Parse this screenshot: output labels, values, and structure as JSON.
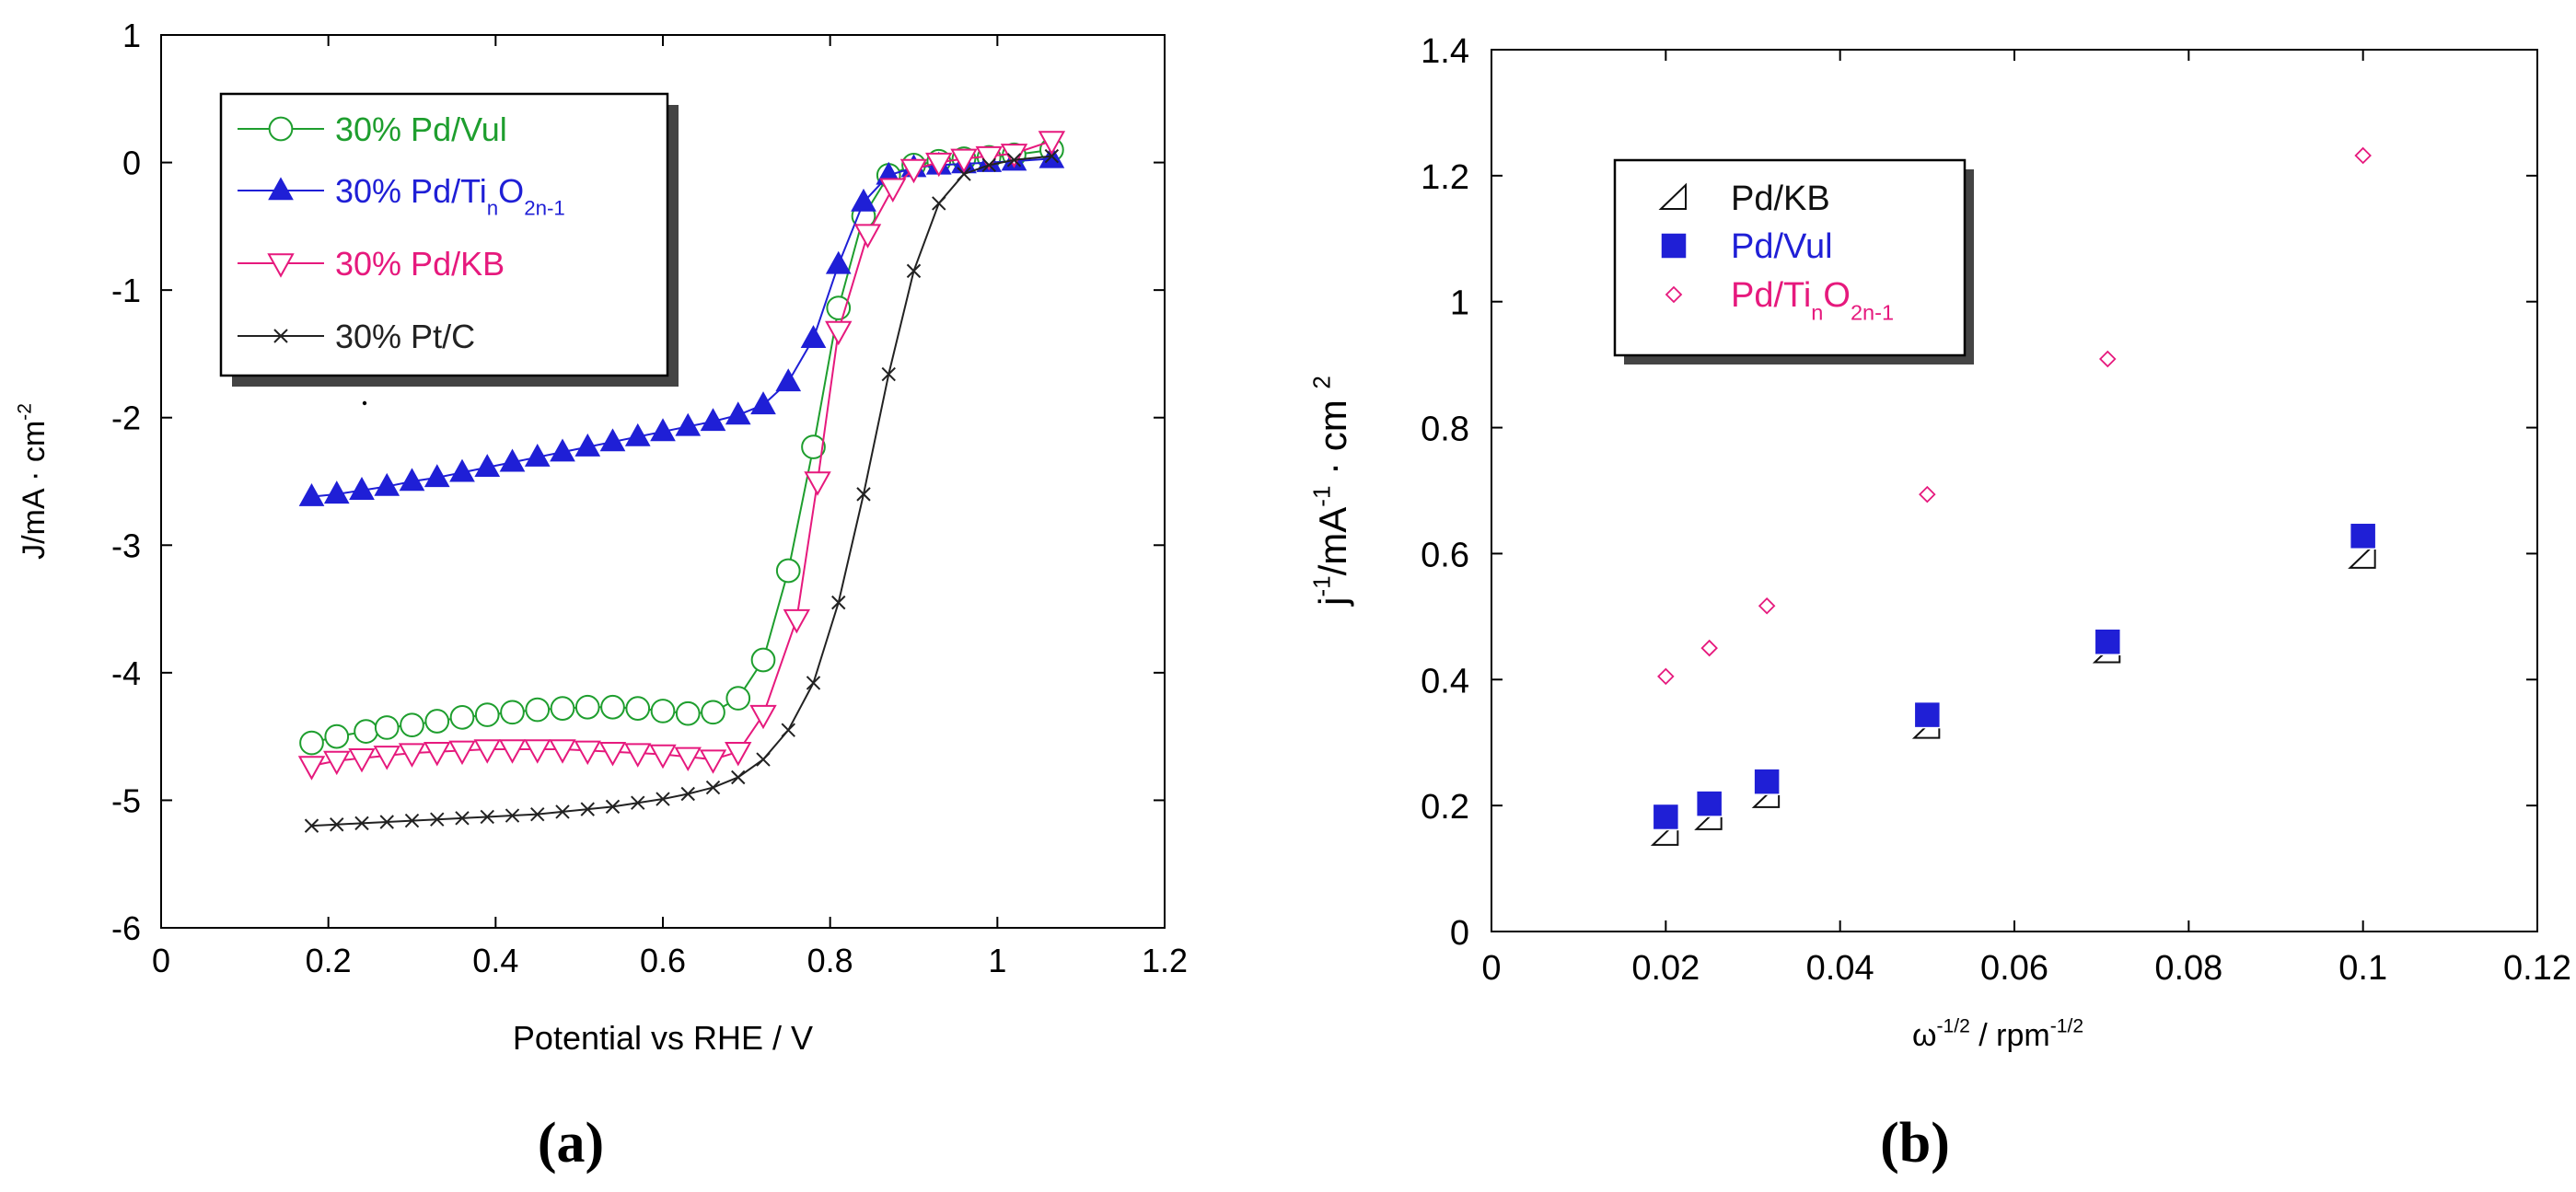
{
  "panel_a": {
    "caption": "(a)",
    "chart_data": {
      "type": "line",
      "xlabel": "Potential vs RHE / V",
      "ylabel": "J/mA · cm",
      "ylabel_sup": "-2",
      "xlim": [
        0,
        1.2
      ],
      "ylim": [
        -6,
        1
      ],
      "xticks": [
        0,
        0.2,
        0.4,
        0.6,
        0.8,
        1,
        1.2
      ],
      "xtick_labels": [
        "0",
        "0.2",
        "0.4",
        "0.6",
        "0.8",
        "1",
        "1.2"
      ],
      "yticks": [
        -6,
        -5,
        -4,
        -3,
        -2,
        -1,
        0,
        1
      ],
      "ytick_labels": [
        "-6",
        "-5",
        "-4",
        "-3",
        "-2",
        "-1",
        "0",
        "1"
      ],
      "legend": {
        "placement": "top-left",
        "entries": [
          {
            "series": 0,
            "parts": [
              {
                "t": "30% Pd/Vul",
                "k": "n"
              }
            ]
          },
          {
            "series": 1,
            "parts": [
              {
                "t": "30% Pd/Ti",
                "k": "n"
              },
              {
                "t": "n",
                "k": "sub"
              },
              {
                "t": "O",
                "k": "n"
              },
              {
                "t": "2n-1",
                "k": "sub"
              }
            ]
          },
          {
            "series": 2,
            "parts": [
              {
                "t": "30% Pd/KB",
                "k": "n"
              }
            ]
          },
          {
            "series": 3,
            "parts": [
              {
                "t": "30% Pt/C",
                "k": "n"
              }
            ]
          }
        ]
      },
      "series": [
        {
          "name": "30% Pd/Vul",
          "color": "#1e9e2e",
          "marker": "circle",
          "x": [
            0.18,
            0.21,
            0.245,
            0.27,
            0.3,
            0.33,
            0.36,
            0.39,
            0.42,
            0.45,
            0.48,
            0.51,
            0.54,
            0.57,
            0.6,
            0.63,
            0.66,
            0.69,
            0.72,
            0.75,
            0.78,
            0.81,
            0.84,
            0.87,
            0.9,
            0.93,
            0.96,
            0.99,
            1.02,
            1.065
          ],
          "y": [
            -4.55,
            -4.5,
            -4.46,
            -4.43,
            -4.41,
            -4.38,
            -4.35,
            -4.33,
            -4.31,
            -4.29,
            -4.28,
            -4.27,
            -4.27,
            -4.28,
            -4.3,
            -4.32,
            -4.31,
            -4.2,
            -3.9,
            -3.2,
            -2.23,
            -1.14,
            -0.42,
            -0.1,
            -0.02,
            0.01,
            0.03,
            0.04,
            0.06,
            0.1
          ]
        },
        {
          "name": "30% Pd/TinO2n-1",
          "color": "#1f1fd6",
          "marker": "triangle-filled",
          "x": [
            0.18,
            0.21,
            0.24,
            0.27,
            0.3,
            0.33,
            0.36,
            0.39,
            0.42,
            0.45,
            0.48,
            0.51,
            0.54,
            0.57,
            0.6,
            0.63,
            0.66,
            0.69,
            0.72,
            0.75,
            0.78,
            0.81,
            0.84,
            0.87,
            0.9,
            0.93,
            0.96,
            0.99,
            1.02,
            1.065
          ],
          "y": [
            -2.62,
            -2.6,
            -2.57,
            -2.54,
            -2.5,
            -2.47,
            -2.43,
            -2.39,
            -2.35,
            -2.31,
            -2.27,
            -2.23,
            -2.19,
            -2.15,
            -2.11,
            -2.07,
            -2.03,
            -1.98,
            -1.9,
            -1.72,
            -1.38,
            -0.8,
            -0.31,
            -0.1,
            -0.04,
            -0.02,
            -0.01,
            0.0,
            0.01,
            0.03
          ]
        },
        {
          "name": "30% Pd/KB",
          "color": "#e6197d",
          "marker": "triangle-down",
          "x": [
            0.18,
            0.21,
            0.24,
            0.27,
            0.3,
            0.33,
            0.36,
            0.39,
            0.42,
            0.45,
            0.48,
            0.51,
            0.54,
            0.57,
            0.6,
            0.63,
            0.66,
            0.69,
            0.72,
            0.76,
            0.785,
            0.81,
            0.845,
            0.875,
            0.9,
            0.93,
            0.96,
            0.99,
            1.02,
            1.065
          ],
          "y": [
            -4.73,
            -4.69,
            -4.67,
            -4.65,
            -4.63,
            -4.62,
            -4.61,
            -4.6,
            -4.6,
            -4.6,
            -4.6,
            -4.61,
            -4.62,
            -4.63,
            -4.64,
            -4.66,
            -4.68,
            -4.62,
            -4.33,
            -3.58,
            -2.5,
            -1.32,
            -0.56,
            -0.2,
            -0.05,
            0.0,
            0.03,
            0.05,
            0.07,
            0.17
          ]
        },
        {
          "name": "30% Pt/C",
          "color": "#222222",
          "marker": "x",
          "x": [
            0.18,
            0.21,
            0.24,
            0.27,
            0.3,
            0.33,
            0.36,
            0.39,
            0.42,
            0.45,
            0.48,
            0.51,
            0.54,
            0.57,
            0.6,
            0.63,
            0.66,
            0.69,
            0.72,
            0.75,
            0.78,
            0.81,
            0.84,
            0.87,
            0.9,
            0.93,
            0.96,
            0.99,
            1.02,
            1.065
          ],
          "y": [
            -5.2,
            -5.19,
            -5.18,
            -5.17,
            -5.16,
            -5.15,
            -5.14,
            -5.13,
            -5.12,
            -5.11,
            -5.09,
            -5.07,
            -5.05,
            -5.02,
            -4.99,
            -4.95,
            -4.9,
            -4.82,
            -4.68,
            -4.45,
            -4.08,
            -3.45,
            -2.6,
            -1.66,
            -0.85,
            -0.32,
            -0.09,
            -0.02,
            0.02,
            0.05
          ]
        }
      ]
    }
  },
  "panel_b": {
    "caption": "(b)",
    "chart_data": {
      "type": "scatter",
      "xlabel": "ω",
      "xlabel_sup": "-1/2",
      "xlabel_mid": " / rpm",
      "xlabel_sup2": "-1/2",
      "ylabel_parts": [
        {
          "t": "j",
          "k": "n"
        },
        {
          "t": "-1",
          "k": "sup"
        },
        {
          "t": "/mA",
          "k": "n"
        },
        {
          "t": "-1",
          "k": "sup"
        },
        {
          "t": " · cm ",
          "k": "n"
        },
        {
          "t": "2",
          "k": "sup"
        }
      ],
      "xlim": [
        0,
        0.12
      ],
      "ylim": [
        0,
        1.4
      ],
      "xticks": [
        0,
        0.02,
        0.04,
        0.06,
        0.08,
        0.1,
        0.12
      ],
      "xtick_labels": [
        "0",
        "0.02",
        "0.04",
        "0.06",
        "0.08",
        "0.1",
        "0.12"
      ],
      "yticks": [
        0,
        0.2,
        0.4,
        0.6,
        0.8,
        1,
        1.2,
        1.4
      ],
      "ytick_labels": [
        "0",
        "0.2",
        "0.4",
        "0.6",
        "0.8",
        "1",
        "1.2",
        "1.4"
      ],
      "legend": {
        "placement": "top-left",
        "entries": [
          {
            "series": 0,
            "parts": [
              {
                "t": "Pd/KB",
                "k": "n"
              }
            ]
          },
          {
            "series": 1,
            "parts": [
              {
                "t": "Pd/Vul",
                "k": "n"
              }
            ]
          },
          {
            "series": 2,
            "parts": [
              {
                "t": "Pd/Ti",
                "k": "n"
              },
              {
                "t": "n",
                "k": "sub"
              },
              {
                "t": "O",
                "k": "n"
              },
              {
                "t": "2n-1",
                "k": "sub"
              }
            ]
          }
        ]
      },
      "series": [
        {
          "name": "Pd/KB",
          "color": "#111111",
          "marker": "half-triangle",
          "x": [
            0.02,
            0.025,
            0.0316,
            0.05,
            0.0707,
            0.1
          ],
          "y": [
            0.155,
            0.18,
            0.215,
            0.325,
            0.445,
            0.595
          ]
        },
        {
          "name": "Pd/Vul",
          "color": "#1f1fd6",
          "marker": "square-filled",
          "x": [
            0.02,
            0.025,
            0.0316,
            0.05,
            0.0707,
            0.1
          ],
          "y": [
            0.182,
            0.203,
            0.238,
            0.344,
            0.46,
            0.628
          ]
        },
        {
          "name": "Pd/TinO2n-1",
          "color": "#e6197d",
          "marker": "diamond",
          "x": [
            0.02,
            0.025,
            0.0316,
            0.05,
            0.0707,
            0.1
          ],
          "y": [
            0.405,
            0.45,
            0.517,
            0.694,
            0.909,
            1.232
          ]
        }
      ]
    }
  }
}
